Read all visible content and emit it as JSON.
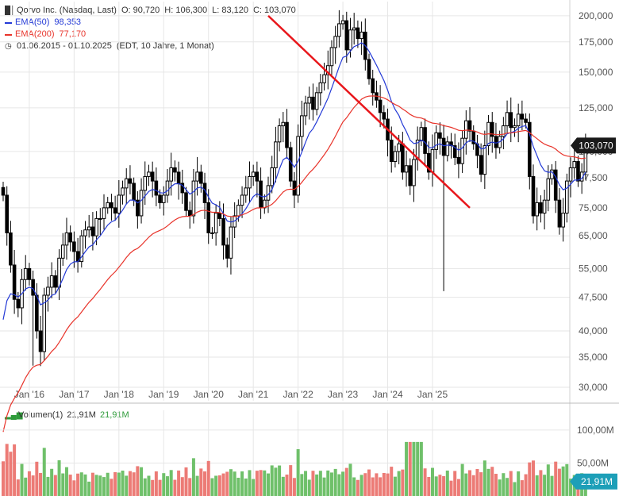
{
  "legend": {
    "title_row": {
      "name": "Qorvo Inc. (Nasdaq, Last)",
      "open": "O: 90,720",
      "high": "H: 106,300",
      "low": "L: 83,120",
      "close": "C: 103,070"
    },
    "ema50": {
      "label": "EMA(50)",
      "value": "98,353",
      "color": "#2339d6"
    },
    "ema200": {
      "label": "EMA(200)",
      "value": "77,170",
      "color": "#e8332a"
    },
    "range": {
      "dates": "01.06.2015 - 01.10.2025",
      "info": "(EDT, 10 Jahre, 1 Monat)"
    }
  },
  "volume_legend": {
    "label": "Volumen(1)",
    "value_a": "21,91M",
    "value_b": "21,91M"
  },
  "price_badge": "103,070",
  "volume_badge": "21,91M",
  "colors": {
    "up": "#6fc06a",
    "down": "#ec7b76",
    "grid": "#e6e6e6",
    "trend": "#e8161b",
    "badge": "#1a1a1a",
    "vol_badge": "#1d9fb8"
  },
  "chart_data": [
    {
      "type": "candlestick",
      "title": "Qorvo Inc. (Nasdaq, Last)",
      "scale": "log",
      "ylim": [
        28000,
        215000
      ],
      "yticks": [
        30000,
        35000,
        40000,
        47500,
        55000,
        65000,
        75000,
        87500,
        100000,
        125000,
        150000,
        175000,
        200000
      ],
      "ytick_labels": [
        "30,000",
        "35,000",
        "40,000",
        "47,500",
        "55,000",
        "65,000",
        "75,000",
        "87,500",
        "100,000",
        "125,000",
        "150,000",
        "175,000",
        "200,000"
      ],
      "xticks": [
        "Jan '16",
        "Jan '17",
        "Jan '18",
        "Jan '19",
        "Jan '20",
        "Jan '21",
        "Jan '22",
        "Jan '23",
        "Jan '24",
        "Jan '25"
      ],
      "start": "2015-06",
      "close": [
        80,
        66,
        56,
        47,
        45,
        52,
        55,
        52,
        48,
        40,
        36,
        48,
        50,
        53,
        50,
        58,
        62,
        66,
        63,
        60,
        57,
        65,
        67,
        68,
        65,
        71,
        71,
        75,
        77,
        75,
        73,
        80,
        83,
        87,
        85,
        78,
        72,
        82,
        88,
        90,
        86,
        80,
        77,
        80,
        86,
        92,
        90,
        85,
        81,
        74,
        72,
        86,
        90,
        85,
        77,
        66,
        66,
        73,
        71,
        62,
        58,
        68,
        72,
        76,
        80,
        83,
        88,
        90,
        86,
        75,
        78,
        84,
        92,
        105,
        114,
        116,
        102,
        86,
        80,
        108,
        120,
        128,
        132,
        124,
        135,
        142,
        148,
        155,
        170,
        180,
        192,
        195,
        168,
        186,
        188,
        178,
        184,
        160,
        145,
        135,
        130,
        122,
        118,
        106,
        95,
        100,
        104,
        90,
        93,
        84,
        96,
        106,
        113,
        99,
        90,
        101,
        110,
        107,
        98,
        105,
        103,
        97,
        94,
        107,
        117,
        111,
        104,
        98,
        89,
        103,
        116,
        108,
        102,
        108,
        114,
        122,
        113,
        114,
        121,
        118,
        116,
        88,
        72,
        77,
        73,
        78,
        87,
        91,
        78,
        68,
        73,
        86,
        92,
        95,
        86,
        90,
        103
      ],
      "ema50": {
        "label": "EMA(50)",
        "last": 98353
      },
      "ema200": {
        "label": "EMA(200)",
        "last": 77170
      },
      "trendline": {
        "from": [
          "2021-05",
          200000
        ],
        "to": [
          "2025-11",
          75000
        ]
      }
    },
    {
      "type": "bar",
      "title": "Volumen(1)",
      "unit": "M",
      "ylim": [
        0,
        130
      ],
      "yticks": [
        50,
        100
      ],
      "ytick_labels": [
        "50,00M",
        "100,00M"
      ],
      "last": 21.91
    }
  ]
}
